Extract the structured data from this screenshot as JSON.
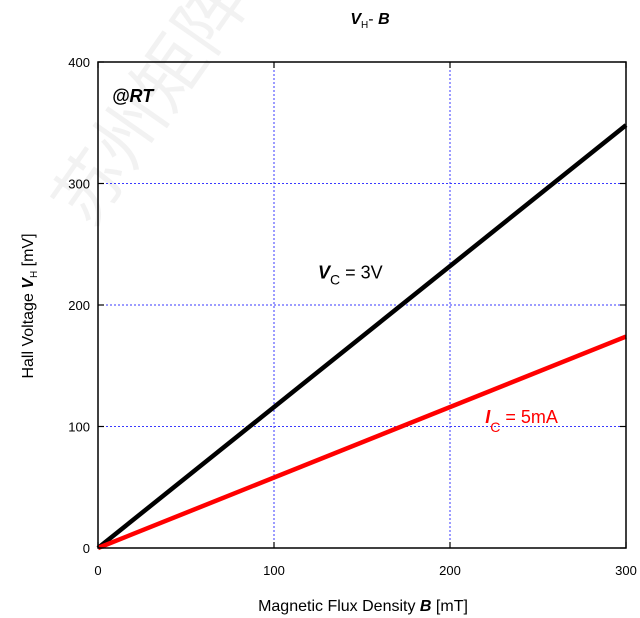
{
  "chart_data": {
    "type": "line",
    "title": {
      "main": "V",
      "sub": "H",
      "rest": "- ",
      "bold": "B"
    },
    "xlabel": {
      "text": "Magnetic Flux Density ",
      "bold": "B",
      "unit": " [mT]"
    },
    "ylabel": {
      "text": "Hall Voltage ",
      "bold": "V",
      "sub": "H",
      "unit": " [mV]"
    },
    "xlim": [
      0,
      300
    ],
    "ylim": [
      0,
      400
    ],
    "xticks": [
      0,
      100,
      200,
      300
    ],
    "yticks": [
      0,
      100,
      200,
      300,
      400
    ],
    "grid": true,
    "annotation_rt": "@RT",
    "series": [
      {
        "name": "V_C = 3V",
        "x": [
          0,
          300
        ],
        "y": [
          0,
          348
        ],
        "color": "#000000"
      },
      {
        "name": "I_C = 5mA",
        "x": [
          0,
          300
        ],
        "y": [
          0,
          174
        ],
        "color": "#ff0000"
      }
    ],
    "labels": [
      {
        "series_index": 0,
        "main": "V",
        "sub": "C",
        "rest": " = 3V",
        "x": 125,
        "y": 222,
        "color": "#000000"
      },
      {
        "series_index": 1,
        "main": "I",
        "sub": "C",
        "rest": " = 5mA",
        "x": 220,
        "y": 103,
        "color": "#ff0000"
      }
    ],
    "watermark": "苏州矩阵"
  }
}
